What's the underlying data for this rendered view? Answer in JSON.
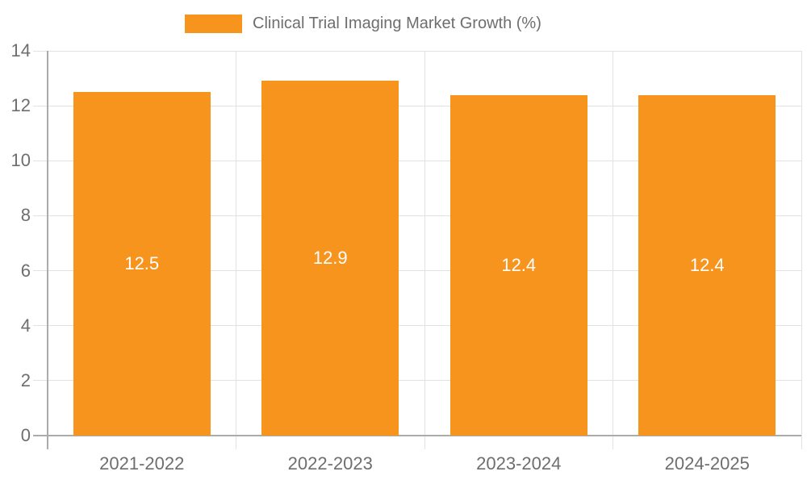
{
  "chart_data": {
    "type": "bar",
    "title": "Clinical Trial Imaging Market Growth (%)",
    "categories": [
      "2021-2022",
      "2022-2023",
      "2023-2024",
      "2024-2025"
    ],
    "values": [
      12.5,
      12.9,
      12.4,
      12.4
    ],
    "value_labels": [
      "12.5",
      "12.9",
      "12.4",
      "12.4"
    ],
    "ylabel": "",
    "xlabel": "",
    "ylim": [
      0,
      14
    ],
    "yticks": [
      0,
      2,
      4,
      6,
      8,
      10,
      12,
      14
    ],
    "grid": "on",
    "legend_position": "top-center",
    "colors": {
      "bar": "#F7941E",
      "axis": "#ABABAB",
      "grid": "#E2E2E2",
      "text": "#6E6E6E",
      "value_label": "#FFFFFF",
      "background": "#FFFFFF"
    }
  }
}
